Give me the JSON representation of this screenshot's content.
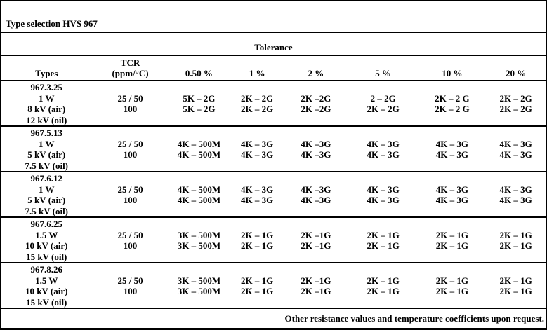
{
  "title": "Type selection HVS 967",
  "tolerance_header": "Tolerance",
  "header": {
    "types": "Types",
    "tcr_line1": "TCR",
    "tcr_line2": "(ppm/°C)",
    "tolerances": [
      "0.50 %",
      "1 %",
      "2 %",
      "5 %",
      "10 %",
      "20 %"
    ]
  },
  "groups": [
    {
      "type": "967.3.25",
      "power": "1 W",
      "air": "8 kV (air)",
      "oil": "12 kV (oil)",
      "rows": [
        {
          "tcr": "25 / 50",
          "values": [
            "5K – 2G",
            "2K – 2G",
            "2K –2G",
            "2 – 2G",
            "2K – 2 G",
            "2K – 2G"
          ]
        },
        {
          "tcr": "100",
          "values": [
            "5K – 2G",
            "2K – 2G",
            "2K –2G",
            "2K – 2G",
            "2K – 2 G",
            "2K – 2G"
          ]
        }
      ]
    },
    {
      "type": "967.5.13",
      "power": "1 W",
      "air": "5 kV (air)",
      "oil": "7.5 kV (oil)",
      "rows": [
        {
          "tcr": "25 / 50",
          "values": [
            "4K – 500M",
            "4K – 3G",
            "4K –3G",
            "4K – 3G",
            "4K – 3G",
            "4K – 3G"
          ]
        },
        {
          "tcr": "100",
          "values": [
            "4K – 500M",
            "4K – 3G",
            "4K –3G",
            "4K – 3G",
            "4K – 3G",
            "4K – 3G"
          ]
        }
      ]
    },
    {
      "type": "967.6.12",
      "power": "1 W",
      "air": "5 kV (air)",
      "oil": "7.5 kV (oil)",
      "rows": [
        {
          "tcr": "25 / 50",
          "values": [
            "4K – 500M",
            "4K – 3G",
            "4K –3G",
            "4K – 3G",
            "4K – 3G",
            "4K – 3G"
          ]
        },
        {
          "tcr": "100",
          "values": [
            "4K – 500M",
            "4K – 3G",
            "4K –3G",
            "4K – 3G",
            "4K – 3G",
            "4K – 3G"
          ]
        }
      ]
    },
    {
      "type": "967.6.25",
      "power": "1.5 W",
      "air": "10 kV (air)",
      "oil": "15 kV (oil)",
      "rows": [
        {
          "tcr": "25 / 50",
          "values": [
            "3K – 500M",
            "2K – 1G",
            "2K –1G",
            "2K – 1G",
            "2K – 1G",
            "2K – 1G"
          ]
        },
        {
          "tcr": "100",
          "values": [
            "3K – 500M",
            "2K – 1G",
            "2K –1G",
            "2K – 1G",
            "2K – 1G",
            "2K – 1G"
          ]
        }
      ]
    },
    {
      "type": "967.8.26",
      "power": "1.5 W",
      "air": "10 kV (air)",
      "oil": "15 kV (oil)",
      "rows": [
        {
          "tcr": "25 / 50",
          "values": [
            "3K – 500M",
            "2K – 1G",
            "2K –1G",
            "2K – 1G",
            "2K – 1G",
            "2K – 1G"
          ]
        },
        {
          "tcr": "100",
          "values": [
            "3K – 500M",
            "2K – 1G",
            "2K –1G",
            "2K – 1G",
            "2K – 1G",
            "2K – 1G"
          ]
        }
      ]
    }
  ],
  "footer": "Other resistance values and temperature coefficients upon request.",
  "colors": {
    "text": "#000000",
    "background": "#ffffff",
    "border": "#000000"
  }
}
